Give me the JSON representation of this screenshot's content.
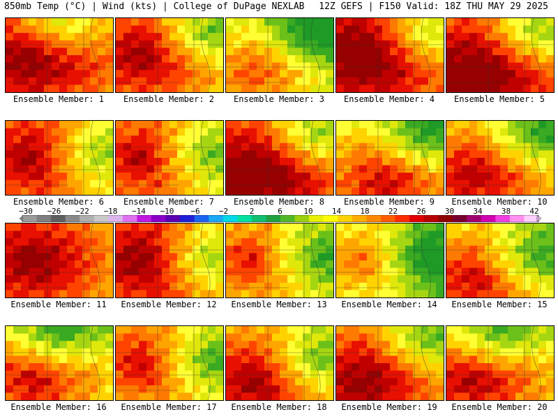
{
  "header": {
    "left": "850mb Temp (°C) | Wind (kts) | College of DuPage NEXLAB",
    "right": "12Z GEFS | F150 Valid: 18Z THU MAY 29 2025"
  },
  "panel_label_prefix": "Ensemble Member: ",
  "members": [
    {
      "id": "1",
      "hot_center": "west",
      "cool_corner": "north",
      "warmth": 0.7
    },
    {
      "id": "2",
      "hot_center": "west",
      "cool_corner": "northeast",
      "warmth": 0.6
    },
    {
      "id": "3",
      "hot_center": "southwest",
      "cool_corner": "northeast",
      "warmth": 0.35
    },
    {
      "id": "4",
      "hot_center": "west",
      "cool_corner": "northeast",
      "warmth": 0.75
    },
    {
      "id": "5",
      "hot_center": "southwest",
      "cool_corner": "northeast",
      "warmth": 0.75
    },
    {
      "id": "6",
      "hot_center": "west",
      "cool_corner": "east",
      "warmth": 0.6
    },
    {
      "id": "7",
      "hot_center": "west",
      "cool_corner": "east",
      "warmth": 0.55
    },
    {
      "id": "8",
      "hot_center": "southwest",
      "cool_corner": "northeast",
      "warmth": 0.75
    },
    {
      "id": "9",
      "hot_center": "south",
      "cool_corner": "northeast",
      "warmth": 0.5
    },
    {
      "id": "10",
      "hot_center": "southwest",
      "cool_corner": "northeast",
      "warmth": 0.55
    },
    {
      "id": "11",
      "hot_center": "west",
      "cool_corner": "none",
      "warmth": 0.65
    },
    {
      "id": "12",
      "hot_center": "west",
      "cool_corner": "east",
      "warmth": 0.65
    },
    {
      "id": "13",
      "hot_center": "west",
      "cool_corner": "east",
      "warmth": 0.45
    },
    {
      "id": "14",
      "hot_center": "west",
      "cool_corner": "east",
      "warmth": 0.3
    },
    {
      "id": "15",
      "hot_center": "southwest",
      "cool_corner": "east",
      "warmth": 0.5
    },
    {
      "id": "16",
      "hot_center": "southwest",
      "cool_corner": "north",
      "warmth": 0.5
    },
    {
      "id": "17",
      "hot_center": "west",
      "cool_corner": "east",
      "warmth": 0.5
    },
    {
      "id": "18",
      "hot_center": "southwest",
      "cool_corner": "east",
      "warmth": 0.6
    },
    {
      "id": "19",
      "hot_center": "southwest",
      "cool_corner": "northeast",
      "warmth": 0.65
    },
    {
      "id": "20",
      "hot_center": "southwest",
      "cool_corner": "north",
      "warmth": 0.55
    }
  ],
  "colorbar": {
    "labels": [
      "-30",
      "-26",
      "-22",
      "-18",
      "-14",
      "-10",
      "-6",
      "-2",
      "2",
      "6",
      "10",
      "14",
      "18",
      "22",
      "26",
      "30",
      "34",
      "38",
      "42"
    ],
    "colors": [
      "#9a9a9a",
      "#7e7e7e",
      "#5e5e5e",
      "#8a8a8a",
      "#aeaeae",
      "#c8c8c8",
      "#dcb4ec",
      "#e070f0",
      "#c018e0",
      "#8a00c8",
      "#5a00b0",
      "#2020d8",
      "#1a64f0",
      "#1aa8f4",
      "#00d8e8",
      "#00e0a0",
      "#10c070",
      "#20a040",
      "#50b828",
      "#9cd00c",
      "#e8f000",
      "#ffff00",
      "#ffd200",
      "#ffae00",
      "#ff8800",
      "#ff5c00",
      "#ff2c00",
      "#e00000",
      "#b80000",
      "#900000",
      "#780030",
      "#a00070",
      "#d000b0",
      "#f040e0",
      "#ff90f0",
      "#ffd0ff"
    ]
  }
}
